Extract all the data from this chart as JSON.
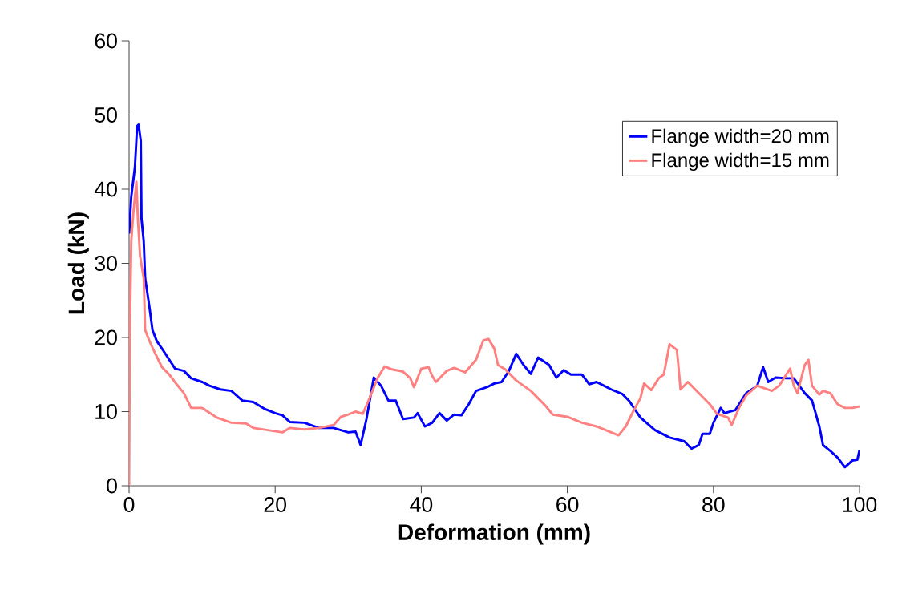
{
  "chart_data": {
    "type": "line",
    "xlabel": "Deformation (mm)",
    "ylabel": "Load (kN)",
    "xlim": [
      0,
      100
    ],
    "ylim": [
      0,
      60
    ],
    "xticks": [
      0,
      20,
      40,
      60,
      80,
      100
    ],
    "yticks": [
      0,
      10,
      20,
      30,
      40,
      50,
      60
    ],
    "grid": false,
    "legend": "top right",
    "marker": "none",
    "line_style": "solid",
    "series": [
      {
        "name": "Flange width=20 mm",
        "color": "#0000ff",
        "x": [
          0,
          0.3,
          0.8,
          1.1,
          1.3,
          1.6,
          1.7,
          2,
          2.2,
          2.8,
          3.2,
          3.8,
          4.5,
          5.5,
          6.3,
          7.5,
          8.5,
          10,
          11,
          12.5,
          14,
          15.5,
          17,
          18.5,
          20,
          21,
          22,
          24,
          26,
          28,
          30,
          31,
          31.7,
          32.5,
          33.5,
          34.5,
          35.5,
          36.5,
          37.5,
          39,
          39.5,
          40.5,
          41.5,
          42.5,
          43.5,
          44.5,
          45.5,
          46.5,
          47.5,
          49,
          50,
          51,
          52,
          53,
          54,
          55,
          56,
          57.5,
          58.5,
          59.5,
          60.5,
          62,
          63,
          64,
          65,
          66,
          67.5,
          68.5,
          70,
          72,
          74,
          76,
          77,
          78,
          78.5,
          79.5,
          80,
          81,
          81.5,
          83,
          84.5,
          86,
          86.8,
          87.5,
          88.5,
          90,
          91,
          92.5,
          93.5,
          94.5,
          95,
          96,
          97,
          98,
          99,
          99.7,
          100
        ],
        "values": [
          34,
          39,
          43,
          48.5,
          48.7,
          46.5,
          36,
          33,
          28,
          24,
          21,
          19.5,
          18.5,
          17,
          15.8,
          15.5,
          14.5,
          14,
          13.5,
          13,
          12.8,
          11.5,
          11.3,
          10.4,
          9.8,
          9.5,
          8.6,
          8.5,
          7.8,
          7.8,
          7.2,
          7.3,
          5.5,
          9,
          14.6,
          13.5,
          11.5,
          11.5,
          9,
          9.2,
          9.8,
          8,
          8.5,
          9.8,
          8.8,
          9.6,
          9.5,
          11,
          12.8,
          13.3,
          13.8,
          14,
          15.5,
          17.8,
          16.3,
          15.1,
          17.3,
          16.3,
          14.6,
          15.6,
          15,
          15,
          13.7,
          14,
          13.5,
          13,
          12.4,
          11.4,
          9.2,
          7.5,
          6.5,
          6,
          5,
          5.5,
          7,
          7,
          8.5,
          10.5,
          9.8,
          10.2,
          12.5,
          13.5,
          16,
          14,
          14.6,
          14.5,
          14.5,
          12.5,
          11.5,
          8,
          5.5,
          4.7,
          3.8,
          2.5,
          3.4,
          3.5,
          4.8
        ]
      },
      {
        "name": "Flange width=15 mm",
        "color": "#ff8080",
        "x": [
          0,
          0.1,
          0.3,
          0.6,
          1,
          1.2,
          1.5,
          2,
          2.2,
          2.8,
          3.5,
          4.5,
          5.5,
          6.5,
          7.5,
          8.5,
          10,
          12,
          14,
          16,
          17,
          19,
          21,
          22,
          24,
          26,
          28,
          29,
          30,
          31,
          32,
          33,
          34,
          35,
          36,
          37.5,
          38.5,
          39,
          40,
          41,
          41.5,
          42,
          43.5,
          44.5,
          46,
          47.5,
          48.5,
          49.2,
          50,
          50.5,
          51.5,
          53,
          55,
          57,
          58,
          60,
          62,
          64,
          65,
          66,
          67,
          68,
          69,
          70,
          70.5,
          71.5,
          72.5,
          73.2,
          74,
          75,
          75.5,
          76.5,
          78,
          79.5,
          80.5,
          82,
          82.5,
          83.5,
          84.5,
          86,
          88,
          89,
          90.5,
          91,
          91.5,
          92.5,
          93,
          93.5,
          94.5,
          95,
          96,
          97,
          98,
          99,
          100
        ],
        "values": [
          0,
          20,
          33,
          37,
          41,
          36,
          31,
          28,
          21,
          19.5,
          18,
          16,
          15,
          13.7,
          12.5,
          10.5,
          10.5,
          9.2,
          8.5,
          8.4,
          7.8,
          7.5,
          7.2,
          7.8,
          7.6,
          7.8,
          8.2,
          9.3,
          9.6,
          10,
          9.7,
          12,
          14.5,
          16.1,
          15.7,
          15.4,
          14.5,
          13.3,
          15.8,
          16,
          14.8,
          14,
          15.5,
          15.9,
          15.3,
          17,
          19.6,
          19.8,
          18.5,
          16.3,
          15.7,
          14.2,
          12.8,
          10.8,
          9.6,
          9.3,
          8.5,
          8,
          7.6,
          7.2,
          6.8,
          8,
          10,
          11.8,
          13.8,
          12.9,
          14.5,
          15,
          19.1,
          18.3,
          13,
          14,
          12.5,
          11,
          9.7,
          9.2,
          8.2,
          10.5,
          12.2,
          13.5,
          12.8,
          13.5,
          15.8,
          13.5,
          12.5,
          16.3,
          17,
          13.5,
          12.3,
          12.8,
          12.5,
          11,
          10.5,
          10.5,
          10.7
        ]
      }
    ]
  }
}
